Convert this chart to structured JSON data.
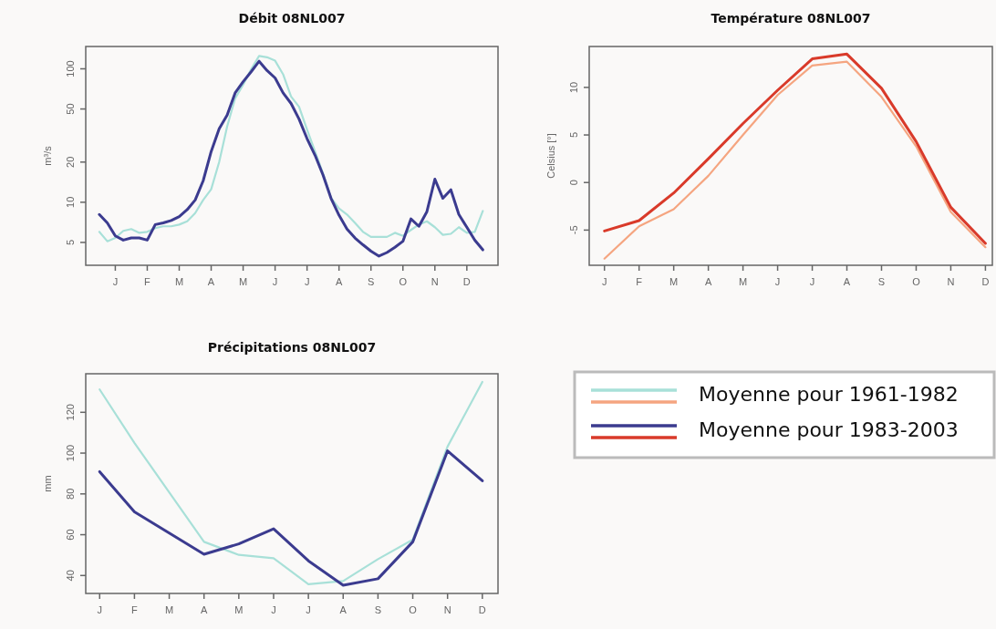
{
  "chart_data": [
    {
      "type": "line",
      "title": "Débit 08NL007",
      "ylabel": "m³/s",
      "log": true,
      "legend": "bottom right",
      "ylim": [
        3.37,
        147
      ],
      "yticks": [
        5,
        10,
        20,
        50,
        100
      ],
      "categories": [
        null,
        null,
        "J",
        null,
        null,
        null,
        "F",
        null,
        null,
        null,
        "M",
        null,
        null,
        null,
        "A",
        null,
        null,
        null,
        "M",
        null,
        null,
        null,
        "J",
        null,
        null,
        null,
        "J",
        null,
        null,
        null,
        "A",
        null,
        null,
        null,
        "S",
        null,
        null,
        null,
        "O",
        null,
        null,
        null,
        "N",
        null,
        null,
        null,
        "D",
        null,
        null
      ],
      "series": [
        {
          "name": "Moyenne pour 1961-1982",
          "color": "#a8e0d8",
          "values": [
            6.0,
            5.1,
            5.4,
            6.1,
            6.3,
            5.9,
            6.0,
            6.4,
            6.6,
            6.6,
            6.8,
            7.2,
            8.3,
            10.4,
            12.5,
            20,
            37,
            60,
            76,
            99,
            125,
            122,
            115,
            91,
            62,
            52,
            35,
            24,
            16.4,
            10.8,
            9.0,
            8.1,
            7.0,
            6.0,
            5.5,
            5.5,
            5.5,
            5.9,
            5.6,
            6.2,
            6.8,
            7.2,
            6.5,
            5.7,
            5.8,
            6.5,
            5.9,
            6.0,
            8.6
          ]
        },
        {
          "name": "Moyenne pour 1983-2003",
          "color": "#3b3b8f",
          "values": [
            8.1,
            7.0,
            5.6,
            5.2,
            5.4,
            5.4,
            5.2,
            6.8,
            7.0,
            7.3,
            7.8,
            8.8,
            10.4,
            14.5,
            24,
            35.5,
            45,
            66,
            80,
            95,
            114,
            97,
            85.4,
            66,
            55,
            42,
            30,
            22.5,
            16,
            10.7,
            8.0,
            6.3,
            5.4,
            4.8,
            4.3,
            3.95,
            4.2,
            4.6,
            5.1,
            7.5,
            6.6,
            8.5,
            14.9,
            10.7,
            12.4,
            8.1,
            6.5,
            5.2,
            4.4
          ]
        }
      ]
    },
    {
      "type": "line",
      "title": "Température 08NL007",
      "ylabel": "Celsius [°]",
      "ylim": [
        -8.7,
        14.3
      ],
      "yticks": [
        -5,
        0,
        5,
        10
      ],
      "categories": [
        "J",
        "F",
        "M",
        "A",
        "M",
        "J",
        "J",
        "A",
        "S",
        "O",
        "N",
        "D"
      ],
      "series": [
        {
          "color": "#f5a580",
          "values": [
            -8.0,
            -4.6,
            -2.8,
            0.7,
            5.0,
            9.2,
            12.3,
            12.7,
            9.0,
            3.8,
            -3.1,
            -6.8
          ]
        },
        {
          "color": "#d93a2a",
          "values": [
            -5.1,
            -4.0,
            -1.1,
            2.5,
            6.2,
            9.7,
            13.0,
            13.5,
            9.9,
            4.3,
            -2.6,
            -6.4
          ]
        }
      ]
    },
    {
      "type": "line",
      "title": "Précipitations 08NL007",
      "ylabel": "mm",
      "ylim": [
        31.2,
        138.9
      ],
      "yticks": [
        40,
        60,
        80,
        100,
        120
      ],
      "categories": [
        "J",
        "F",
        "M",
        "A",
        "M",
        "J",
        "J",
        "A",
        "S",
        "O",
        "N",
        "D"
      ],
      "series": [
        {
          "color": "#a8e0d8",
          "values": [
            131.2,
            105,
            80.8,
            56.5,
            50.1,
            48.5,
            35.7,
            37.3,
            48,
            57.6,
            103.2,
            134.9
          ]
        },
        {
          "color": "#3b3b8f",
          "values": [
            90.9,
            71.2,
            60.8,
            50.4,
            55.5,
            62.9,
            47.2,
            35.2,
            38.4,
            56.5,
            101.1,
            86.4
          ]
        }
      ]
    }
  ]
}
